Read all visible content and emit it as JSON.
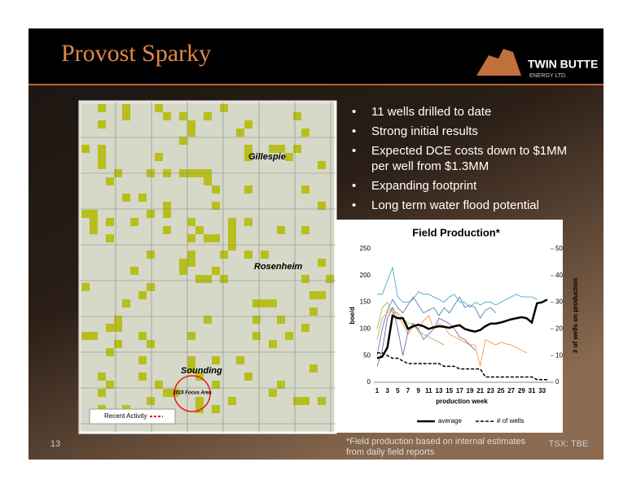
{
  "header": {
    "title": "Provost Sparky",
    "logo": {
      "name": "TWIN BUTTE",
      "subtitle": "ENERGY LTD."
    }
  },
  "bullets": [
    "11 wells drilled to date",
    "Strong initial results",
    "Expected DCE costs down to $1MM per well from $1.3MM",
    "Expanding footprint",
    "Long term water flood potential"
  ],
  "map": {
    "labels": [
      "Gillespie",
      "Rosenheim",
      "Sounding"
    ],
    "focus_area": "2015 Focus Area",
    "legend": "Recent Activity"
  },
  "footer": {
    "page_number": "13",
    "footnote": "*Field production based on internal estimates from daily field reports",
    "ticker": "TSX: TBE"
  },
  "chart_data": {
    "type": "line",
    "title": "Field Production*",
    "x_label": "production week",
    "y_label": "boe/d",
    "y2_label": "# of wells on production",
    "categories": [
      1,
      null,
      3,
      null,
      5,
      null,
      7,
      null,
      9,
      null,
      11,
      null,
      13,
      null,
      15,
      null,
      17,
      null,
      19,
      null,
      21,
      null,
      23,
      null,
      25,
      null,
      27,
      null,
      29,
      null,
      31,
      null,
      33,
      null
    ],
    "ylim": [
      0,
      250
    ],
    "yticks": [
      0,
      50,
      100,
      150,
      200,
      250
    ],
    "y2lim": [
      0,
      50
    ],
    "y2ticks": [
      0,
      10,
      20,
      30,
      40,
      50
    ],
    "series": [
      {
        "color": "#4bacc6",
        "values": [
          165,
          165,
          190,
          215,
          160,
          150,
          150,
          155,
          170,
          165,
          165,
          160,
          155,
          150,
          160,
          165,
          150,
          150,
          140,
          150,
          145,
          150,
          150,
          145,
          150,
          155,
          160,
          165,
          160,
          160,
          160,
          155,
          null,
          null
        ]
      },
      {
        "color": "#4f81bd",
        "values": [
          50,
          100,
          135,
          155,
          140,
          130,
          145,
          160,
          145,
          130,
          135,
          140,
          125,
          140,
          130,
          145,
          160,
          140,
          145,
          140,
          120,
          135,
          140,
          130,
          null,
          null,
          null,
          null,
          null,
          null,
          null,
          null,
          null,
          null
        ]
      },
      {
        "color": "#f79646",
        "values": [
          80,
          120,
          130,
          140,
          125,
          110,
          90,
          105,
          100,
          115,
          125,
          100,
          110,
          105,
          90,
          85,
          80,
          75,
          70,
          70,
          30,
          80,
          75,
          70,
          75,
          72,
          70,
          65,
          60,
          55,
          null,
          null,
          null,
          null
        ]
      },
      {
        "color": "#9bbb59",
        "values": [
          100,
          140,
          150,
          130,
          130,
          120,
          110,
          110,
          95,
          90,
          85,
          80,
          75,
          70,
          null,
          null,
          null,
          null,
          null,
          null,
          null,
          null,
          null,
          null,
          null,
          null,
          null,
          null,
          null,
          null,
          null,
          null,
          null,
          null
        ]
      },
      {
        "color": "#8064a2",
        "values": [
          30,
          60,
          120,
          140,
          100,
          50,
          95,
          110,
          100,
          80,
          90,
          100,
          120,
          115,
          110,
          100,
          85,
          80,
          70,
          60,
          null,
          null,
          null,
          null,
          null,
          null,
          null,
          null,
          null,
          null,
          null,
          null,
          null,
          null
        ]
      },
      {
        "name": "average",
        "color": "#000000",
        "width": 2.5,
        "values": [
          45,
          48,
          65,
          125,
          120,
          120,
          100,
          105,
          108,
          105,
          100,
          103,
          105,
          104,
          102,
          105,
          107,
          100,
          97,
          95,
          98,
          105,
          110,
          110,
          112,
          115,
          118,
          120,
          122,
          120,
          112,
          148,
          150,
          155
        ]
      },
      {
        "name": "# of wells",
        "color": "#000000",
        "dashed": true,
        "axis": "y2",
        "values": [
          11,
          11,
          10,
          9,
          9,
          8,
          7,
          7,
          7,
          7,
          7,
          7,
          7,
          6,
          6,
          6,
          5,
          5,
          5,
          5,
          5,
          2,
          2,
          2,
          2,
          2,
          2,
          2,
          2,
          2,
          2,
          1,
          1,
          1
        ]
      }
    ]
  }
}
